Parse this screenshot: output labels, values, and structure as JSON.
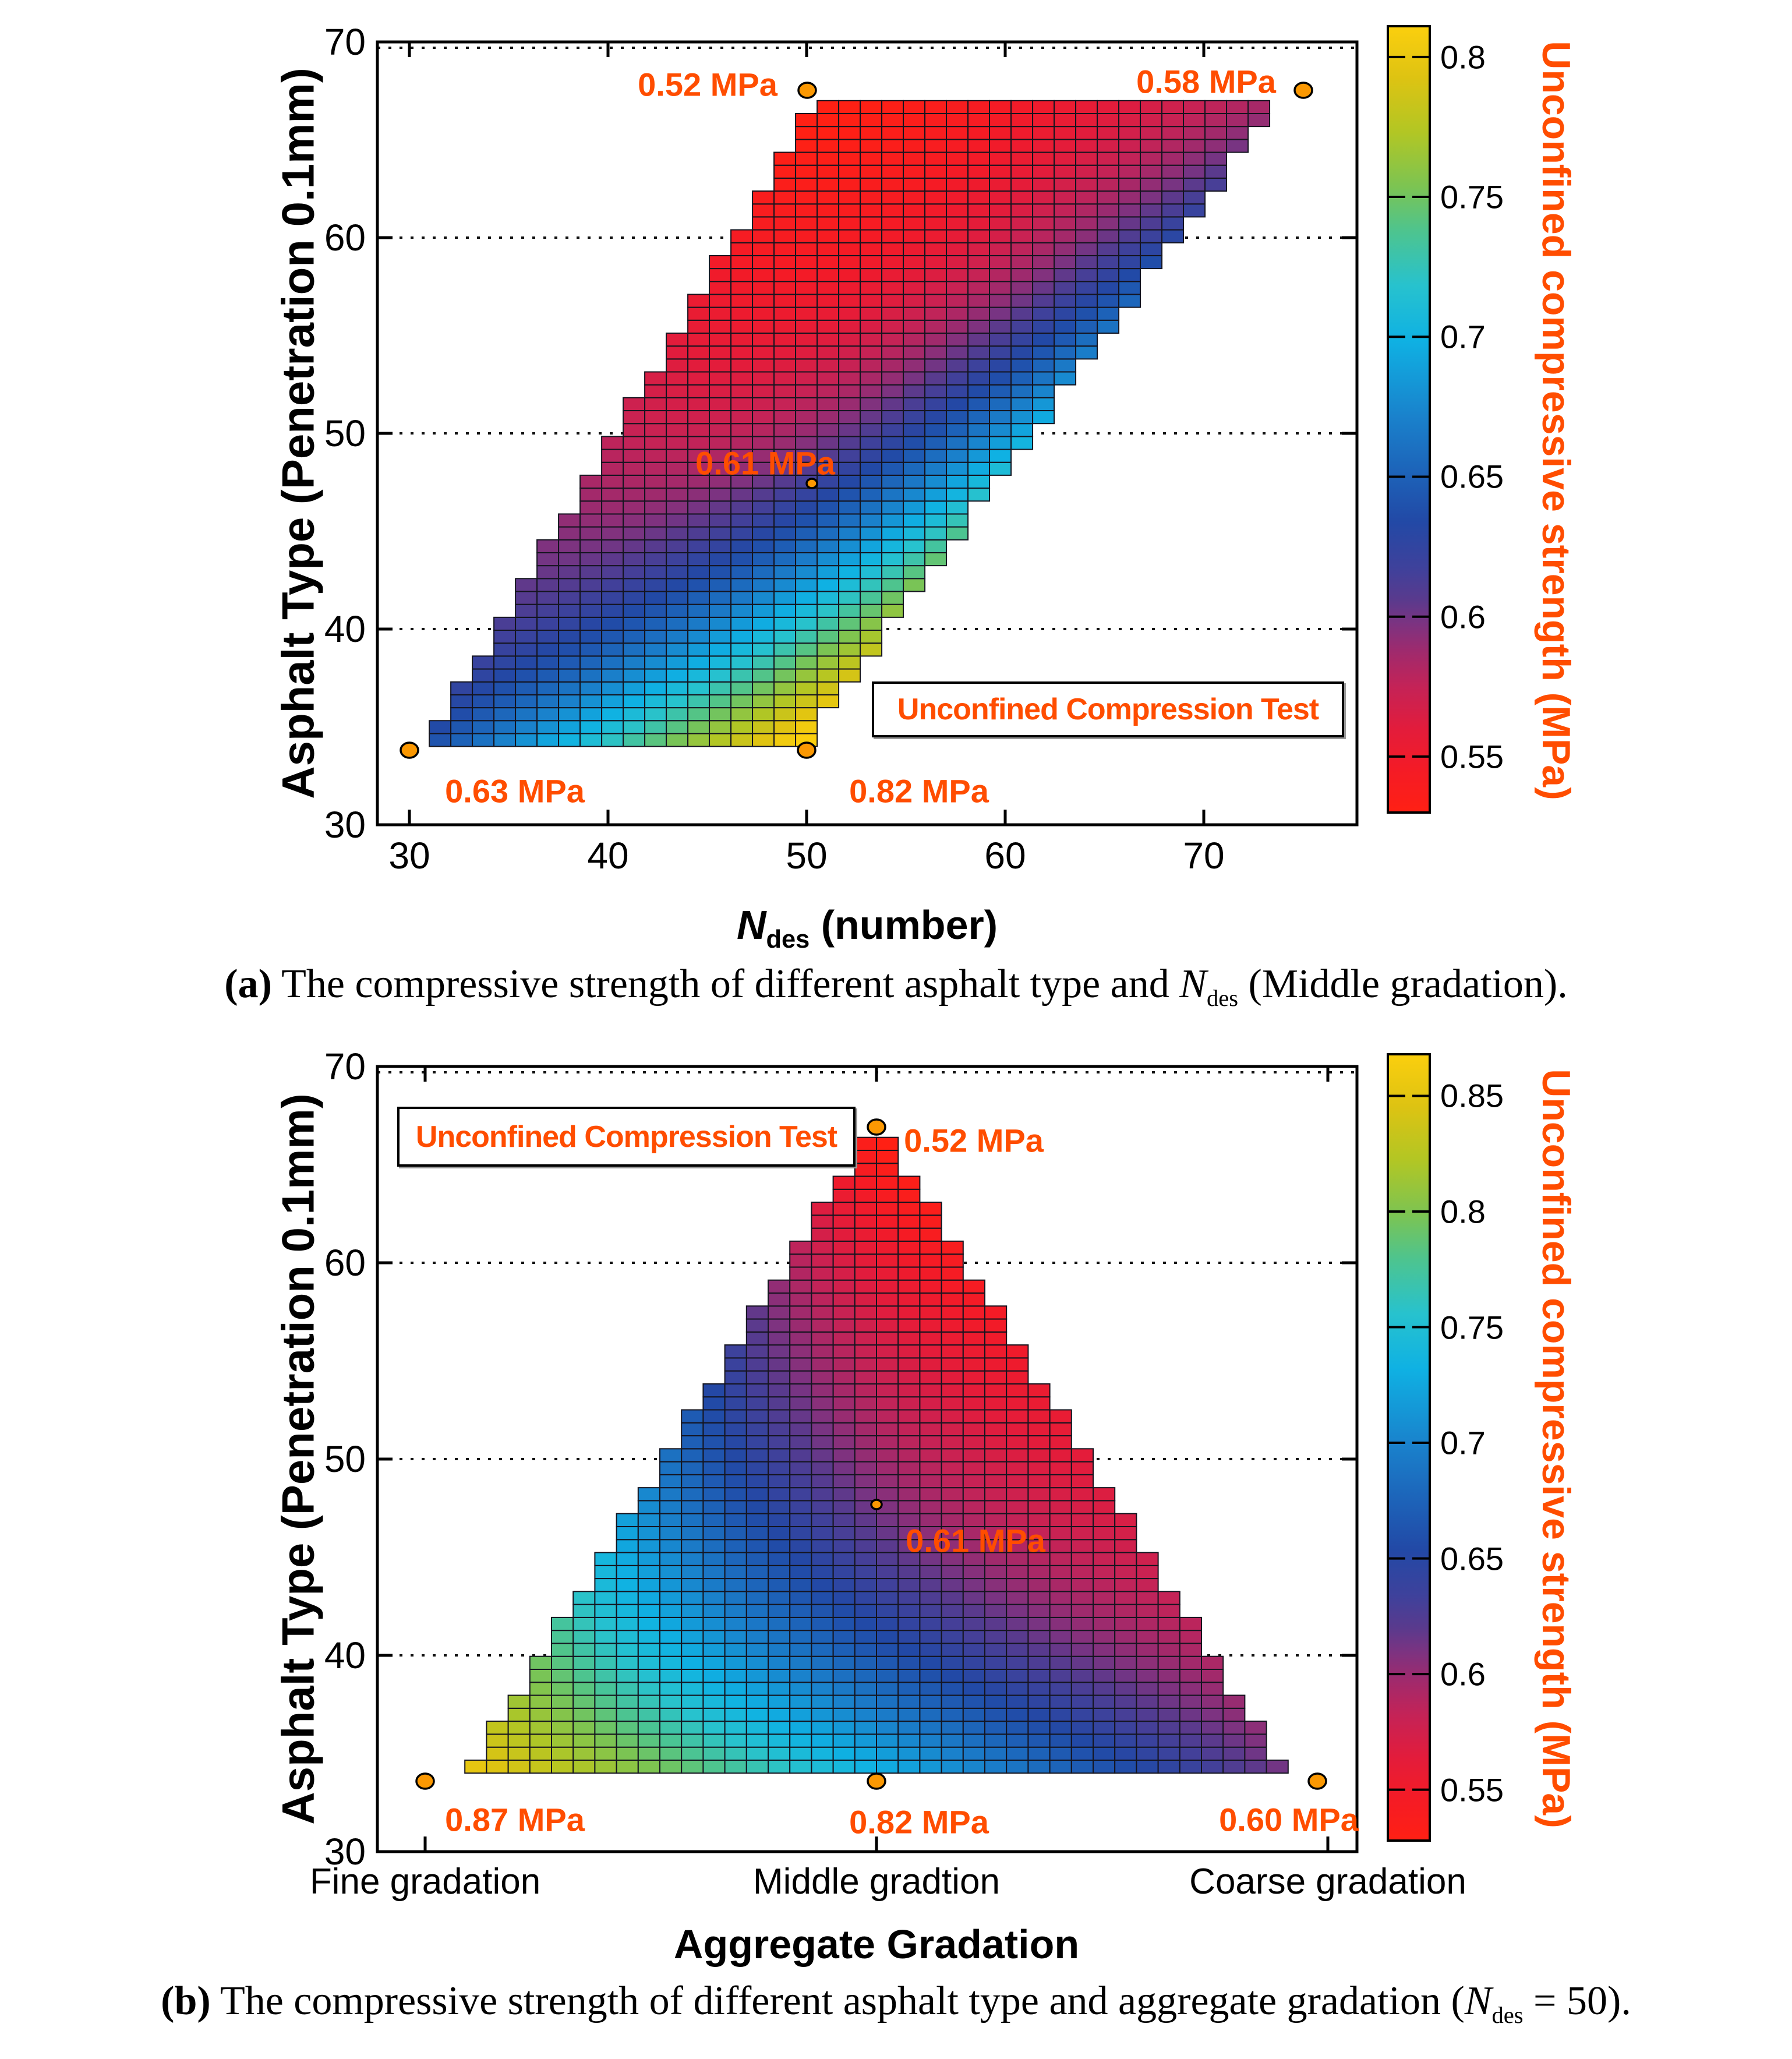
{
  "colors": {
    "annotation": "#FF4D00",
    "legend_text": "#FF4D00",
    "colorbar_label": "#FF4D00",
    "dot_fill": "#FB9802",
    "dot_stroke": "#000000",
    "frame": "#000000",
    "cell_border": "#14141F",
    "background": "#FFFFFF"
  },
  "colormap": {
    "stops": [
      [
        0.0,
        "#FF2014"
      ],
      [
        0.055,
        "#F41B26"
      ],
      [
        0.105,
        "#E31C3B"
      ],
      [
        0.16,
        "#C42357"
      ],
      [
        0.205,
        "#9F2A6D"
      ],
      [
        0.24,
        "#7C3381"
      ],
      [
        0.27,
        "#5A3A8D"
      ],
      [
        0.31,
        "#3F419B"
      ],
      [
        0.37,
        "#2249A6"
      ],
      [
        0.43,
        "#1D62B8"
      ],
      [
        0.5,
        "#1A80CB"
      ],
      [
        0.6,
        "#0FB1E3"
      ],
      [
        0.67,
        "#27C2CE"
      ],
      [
        0.74,
        "#4EC48E"
      ],
      [
        0.795,
        "#7BC453"
      ],
      [
        0.865,
        "#B2C624"
      ],
      [
        0.935,
        "#DEC312"
      ],
      [
        1.0,
        "#FBCF0E"
      ]
    ]
  },
  "chart_data": [
    {
      "panel": "a",
      "type": "heatmap",
      "legend": "Unconfined Compression Test",
      "x_axis": {
        "title_parts": {
          "math": "N",
          "sub": "des",
          "rest": " (number)"
        },
        "ticks": [
          30,
          40,
          50,
          60,
          70
        ],
        "range": [
          28.4,
          77.7
        ]
      },
      "y_axis": {
        "title": "Asphalt Type (Penetration 0.1mm)",
        "ticks": [
          30,
          40,
          50,
          60,
          70
        ],
        "range": [
          30,
          70
        ],
        "dotted_gridlines": [
          40,
          50,
          60,
          70
        ]
      },
      "colorbar": {
        "label": "Unconfined compressive strength (MPa)",
        "tick_labels": [
          "0.8",
          "0.75",
          "0.7",
          "0.65",
          "0.6",
          "0.55"
        ],
        "tick_values": [
          0.8,
          0.75,
          0.7,
          0.65,
          0.6,
          0.55
        ],
        "value_min": 0.53,
        "value_max": 0.811
      },
      "points": [
        {
          "label": "0.63 MPa",
          "value": 0.63,
          "x": 30,
          "y": 34
        },
        {
          "label": "0.82 MPa",
          "value": 0.82,
          "x": 50,
          "y": 34
        },
        {
          "label": "0.52 MPa",
          "value": 0.52,
          "x": 50,
          "y": 68
        },
        {
          "label": "0.58 MPa",
          "value": 0.58,
          "x": 75,
          "y": 68
        },
        {
          "label": "0.61 MPa",
          "value": 0.61,
          "x": 50,
          "y": 48
        }
      ],
      "surface": {
        "shape": "parallelogram",
        "corners": [
          {
            "x": 30,
            "y": 34,
            "value": 0.63
          },
          {
            "x": 50,
            "y": 34,
            "value": 0.82
          },
          {
            "x": 50,
            "y": 68,
            "value": 0.52
          },
          {
            "x": 75,
            "y": 68,
            "value": 0.58
          }
        ],
        "center": {
          "x": 50,
          "y": 48,
          "value": 0.61
        }
      },
      "caption": {
        "tag": "(a)",
        "pre": " The compressive strength of different asphalt type and ",
        "math": "N",
        "sub": "des",
        "post": " (Middle gradation)."
      }
    },
    {
      "panel": "b",
      "type": "heatmap",
      "legend": "Unconfined Compression Test",
      "x_axis": {
        "title": "Aggregate Gradation",
        "categories": [
          "Fine gradation",
          "Middle gradtion",
          "Coarse gradation"
        ]
      },
      "y_axis": {
        "title": "Asphalt Type (Penetration 0.1mm)",
        "ticks": [
          30,
          40,
          50,
          60,
          70
        ],
        "range": [
          30,
          70
        ],
        "dotted_gridlines": [
          40,
          50,
          60,
          70
        ]
      },
      "colorbar": {
        "label": "Unconfined compressive strength (MPa)",
        "tick_labels": [
          "0.85",
          "0.8",
          "0.75",
          "0.7",
          "0.65",
          "0.6",
          "0.55"
        ],
        "tick_values": [
          0.85,
          0.8,
          0.75,
          0.7,
          0.65,
          0.6,
          0.55
        ],
        "value_min": 0.528,
        "value_max": 0.868
      },
      "points": [
        {
          "label": "0.87 MPa",
          "value": 0.87,
          "x": "Fine gradation",
          "y": 34
        },
        {
          "label": "0.82 MPa",
          "value": 0.82,
          "x": "Middle gradtion",
          "y": 34
        },
        {
          "label": "0.60 MPa",
          "value": 0.6,
          "x": "Coarse gradation",
          "y": 34
        },
        {
          "label": "0.52 MPa",
          "value": 0.52,
          "x": "Middle gradtion",
          "y": 68
        },
        {
          "label": "0.61 MPa",
          "value": 0.61,
          "x": "Middle gradtion",
          "y": 48
        }
      ],
      "surface": {
        "shape": "triangle",
        "corners": [
          {
            "x": 2,
            "y": 68,
            "value": 0.52
          },
          {
            "x": 1,
            "y": 34,
            "value": 0.87
          },
          {
            "x": 3,
            "y": 34,
            "value": 0.6
          }
        ],
        "center": {
          "x": 2,
          "y": 48,
          "value": 0.61
        }
      },
      "caption": {
        "tag": "(b)",
        "pre": " The compressive strength of different asphalt type and aggregate gradation (",
        "math": "N",
        "sub": "des",
        "post": " = 50)."
      }
    }
  ]
}
